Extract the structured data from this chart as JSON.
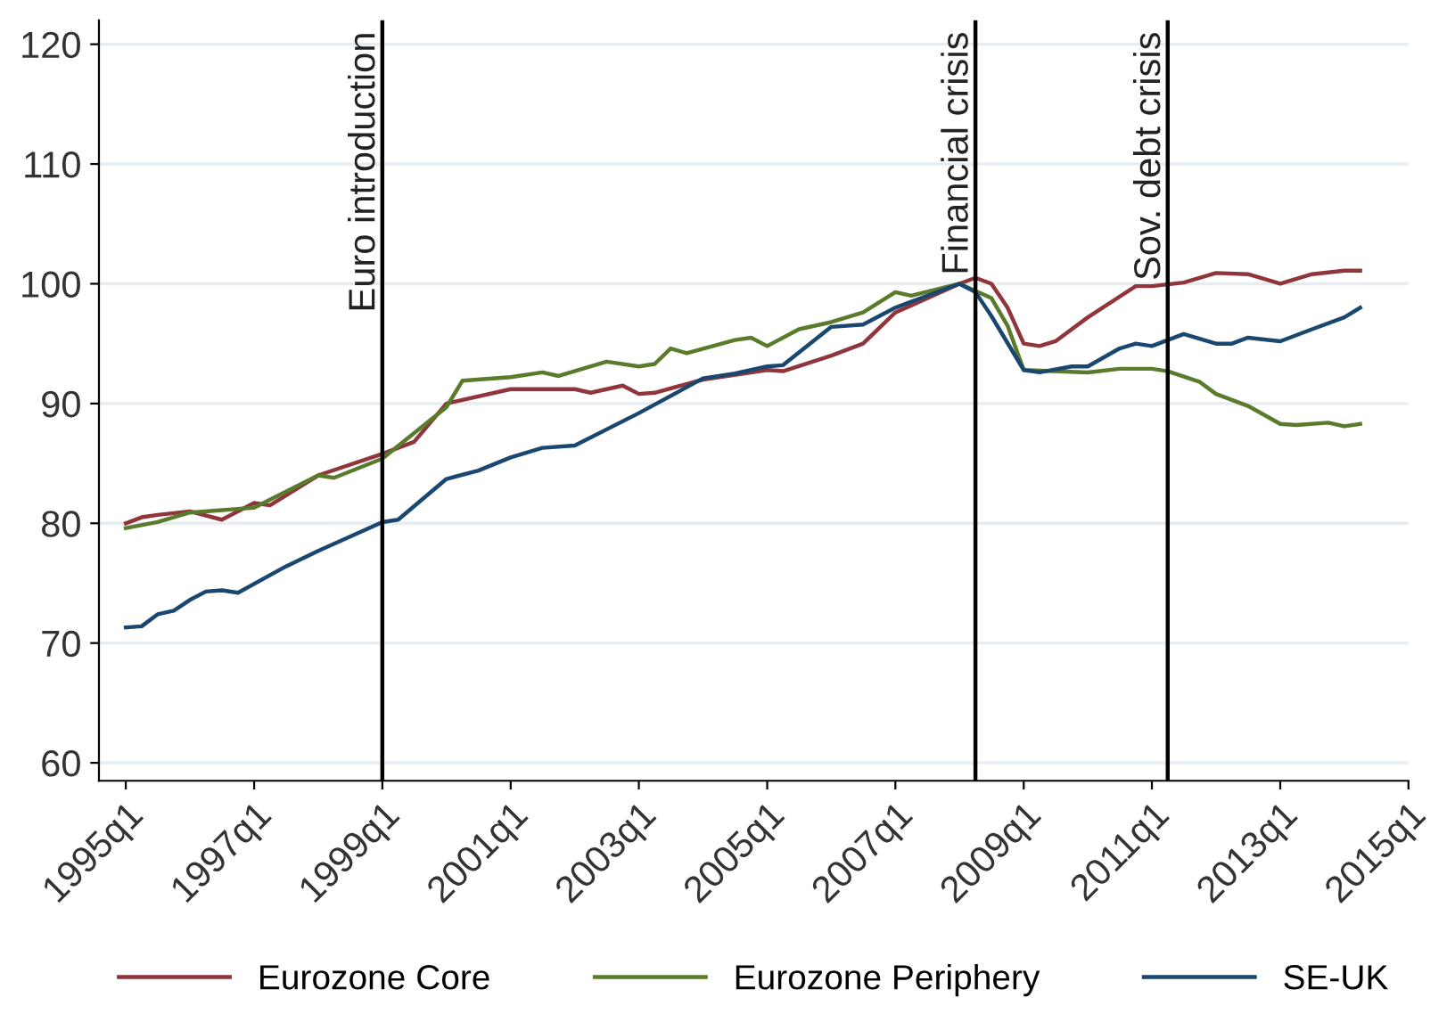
{
  "chart_data": {
    "type": "line",
    "series": [
      {
        "name": "Eurozone Core",
        "color": "#90353b",
        "x": [
          "1995-01",
          "1995-04",
          "1995-07",
          "1996-01",
          "1996-07",
          "1997-01",
          "1997-04",
          "1998-01",
          "1999-01",
          "1999-07",
          "2000-01",
          "2001-01",
          "2002-01",
          "2002-04",
          "2002-10",
          "2003-01",
          "2003-04",
          "2004-01",
          "2005-01",
          "2005-04",
          "2006-01",
          "2006-07",
          "2007-01",
          "2008-01",
          "2008-04",
          "2008-07",
          "2008-10",
          "2009-01",
          "2009-04",
          "2009-07",
          "2010-01",
          "2010-10",
          "2011-01",
          "2011-07",
          "2012-01",
          "2012-07",
          "2013-01",
          "2013-07",
          "2014-01",
          "2014-04"
        ],
        "values": [
          80,
          80.5,
          80.7,
          81,
          80.3,
          81.7,
          81.5,
          84,
          85.8,
          86.8,
          90,
          91.2,
          91.2,
          90.9,
          91.5,
          90.8,
          90.9,
          92,
          92.8,
          92.7,
          94,
          95,
          97.6,
          100,
          100.5,
          100,
          98,
          95,
          94.8,
          95.2,
          97.2,
          99.8,
          99.8,
          100.1,
          100.9,
          100.8,
          100,
          100.8,
          101.1,
          101.1
        ]
      },
      {
        "name": "Eurozone Periphery",
        "color": "#5a7a2c",
        "x": [
          "1995-01",
          "1995-07",
          "1996-01",
          "1997-01",
          "1998-01",
          "1998-04",
          "1999-01",
          "2000-01",
          "2000-04",
          "2001-01",
          "2001-07",
          "2001-10",
          "2002-07",
          "2003-01",
          "2003-04",
          "2003-07",
          "2003-10",
          "2004-07",
          "2004-10",
          "2005-01",
          "2005-07",
          "2006-01",
          "2006-07",
          "2007-01",
          "2007-04",
          "2008-01",
          "2008-07",
          "2008-10",
          "2009-01",
          "2010-01",
          "2010-07",
          "2011-01",
          "2011-04",
          "2011-10",
          "2012-01",
          "2012-07",
          "2013-01",
          "2013-04",
          "2013-10",
          "2014-01",
          "2014-04"
        ],
        "values": [
          79.6,
          80.1,
          80.9,
          81.3,
          84,
          83.8,
          85.4,
          89.7,
          91.9,
          92.2,
          92.6,
          92.3,
          93.5,
          93.1,
          93.3,
          94.6,
          94.2,
          95.3,
          95.5,
          94.8,
          96.2,
          96.8,
          97.6,
          99.3,
          99.0,
          100,
          98.8,
          96.5,
          92.8,
          92.6,
          92.9,
          92.9,
          92.7,
          91.8,
          90.8,
          89.8,
          88.3,
          88.2,
          88.4,
          88.1,
          88.3
        ]
      },
      {
        "name": "SE-UK",
        "color": "#1a476f",
        "x": [
          "1995-01",
          "1995-04",
          "1995-07",
          "1995-10",
          "1996-01",
          "1996-04",
          "1996-07",
          "1996-10",
          "1997-07",
          "1998-01",
          "1999-01",
          "1999-04",
          "2000-01",
          "2000-07",
          "2001-01",
          "2001-07",
          "2002-01",
          "2003-01",
          "2004-01",
          "2004-07",
          "2005-01",
          "2005-04",
          "2006-01",
          "2006-07",
          "2007-01",
          "2008-01",
          "2008-04",
          "2008-07",
          "2009-01",
          "2009-04",
          "2009-10",
          "2010-01",
          "2010-07",
          "2010-10",
          "2011-01",
          "2011-07",
          "2012-01",
          "2012-04",
          "2012-07",
          "2013-01",
          "2013-07",
          "2014-01",
          "2014-04"
        ],
        "values": [
          71.3,
          71.4,
          72.4,
          72.7,
          73.6,
          74.3,
          74.4,
          74.2,
          76.4,
          77.7,
          80.1,
          80.3,
          83.7,
          84.4,
          85.5,
          86.3,
          86.5,
          89.2,
          92.1,
          92.5,
          93.1,
          93.2,
          96.4,
          96.6,
          98,
          100,
          99.3,
          97.3,
          92.8,
          92.6,
          93.1,
          93.1,
          94.6,
          95.0,
          94.8,
          95.8,
          95.0,
          95.0,
          95.5,
          95.2,
          96.2,
          97.2,
          98
        ]
      }
    ],
    "xlim": [
      "1994-08",
      "2015-01"
    ],
    "xticks": [
      {
        "value": "1995-01",
        "label": "1995q1"
      },
      {
        "value": "1997-01",
        "label": "1997q1"
      },
      {
        "value": "1999-01",
        "label": "1999q1"
      },
      {
        "value": "2001-01",
        "label": "2001q1"
      },
      {
        "value": "2003-01",
        "label": "2003q1"
      },
      {
        "value": "2005-01",
        "label": "2005q1"
      },
      {
        "value": "2007-01",
        "label": "2007q1"
      },
      {
        "value": "2009-01",
        "label": "2009q1"
      },
      {
        "value": "2011-01",
        "label": "2011q1"
      },
      {
        "value": "2013-01",
        "label": "2013q1"
      },
      {
        "value": "2015-01",
        "label": "2015q1"
      }
    ],
    "ylim": [
      58.5,
      122
    ],
    "yticks": [
      60,
      70,
      80,
      90,
      100,
      110,
      120
    ],
    "ref_lines": [
      {
        "axis": "x",
        "value": "1999-01",
        "label": "Euro introduction",
        "color": "#000000"
      },
      {
        "axis": "x",
        "value": "2008-04",
        "label": "Financial crisis",
        "color": "#000000"
      },
      {
        "axis": "x",
        "value": "2011-04",
        "label": "Sov. debt crisis",
        "color": "#000000"
      }
    ],
    "grid": "y",
    "legend": "bottom",
    "marker": "none",
    "line_style": "solid"
  }
}
